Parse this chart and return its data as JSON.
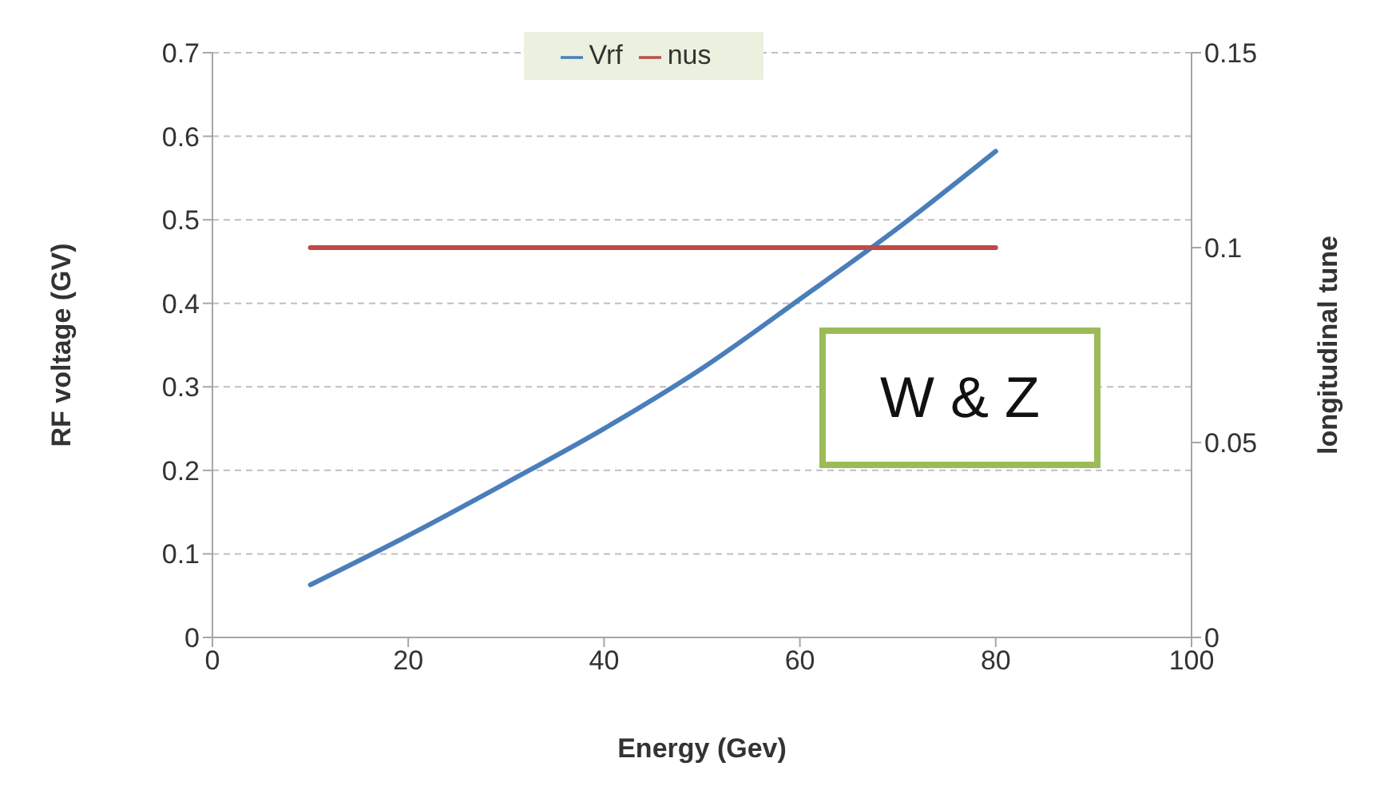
{
  "chart_data": {
    "type": "line",
    "xlabel": "Energy (Gev)",
    "ylabel": "RF voltage (GV)",
    "y2label": "longitudinal tune",
    "xlim": [
      0,
      100
    ],
    "xticks": [
      0,
      20,
      40,
      60,
      80,
      100
    ],
    "ylim": [
      0,
      0.7
    ],
    "yticks": [
      0,
      0.1,
      0.2,
      0.3,
      0.4,
      0.5,
      0.6,
      0.7
    ],
    "y2lim": [
      0,
      0.15
    ],
    "y2ticks": [
      0,
      0.05,
      0.1,
      0.15
    ],
    "grid": "y",
    "legend": "top",
    "marker": "none",
    "line_style": "solid",
    "annotations": [
      "W & Z"
    ],
    "series": [
      {
        "name": "Vrf",
        "color": "#4a7ebb",
        "x": [
          10,
          20,
          30,
          40,
          50,
          60,
          70,
          80
        ],
        "values": [
          0.063,
          0.122,
          0.185,
          0.25,
          0.322,
          0.405,
          0.49,
          0.582
        ]
      },
      {
        "name": "nus",
        "color": "#be4b48",
        "axis": "y2",
        "x": [
          10,
          80
        ],
        "values": [
          0.1,
          0.1
        ]
      }
    ]
  }
}
